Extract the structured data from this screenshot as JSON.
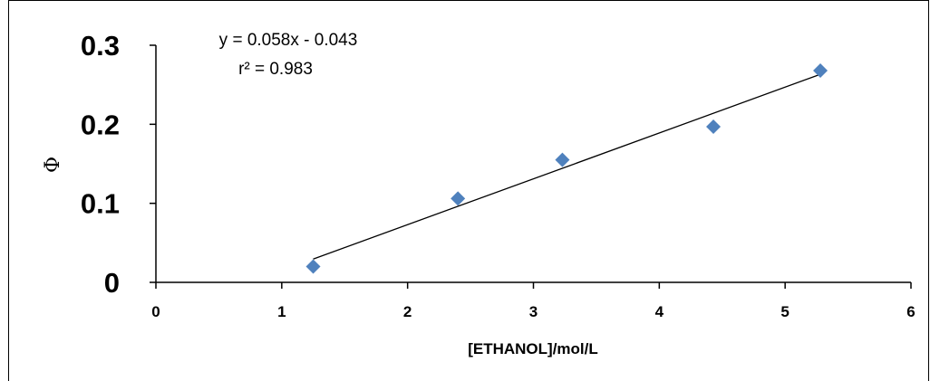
{
  "chart_data": {
    "type": "scatter",
    "xlabel": "[ETHANOL]/mol/L",
    "ylabel": "Φ",
    "xlim": [
      0,
      6
    ],
    "ylim": [
      0,
      0.3
    ],
    "xticks": [
      "0",
      "1",
      "2",
      "3",
      "4",
      "5",
      "6"
    ],
    "yticks": [
      "0",
      "0.1",
      "0.2",
      "0.3"
    ],
    "series": [
      {
        "x": [
          1.25,
          2.4,
          3.23,
          4.43,
          5.28
        ],
        "y": [
          0.02,
          0.106,
          0.155,
          0.197,
          0.268
        ],
        "color": "#4f81bd",
        "marker": "diamond"
      }
    ],
    "trendline": {
      "slope": 0.058,
      "intercept": -0.043,
      "x_range": [
        1.25,
        5.28
      ],
      "color": "#000000"
    },
    "annotations": {
      "equation": "y = 0.058x - 0.043",
      "r_squared": "r² = 0.983"
    },
    "grid": false
  }
}
